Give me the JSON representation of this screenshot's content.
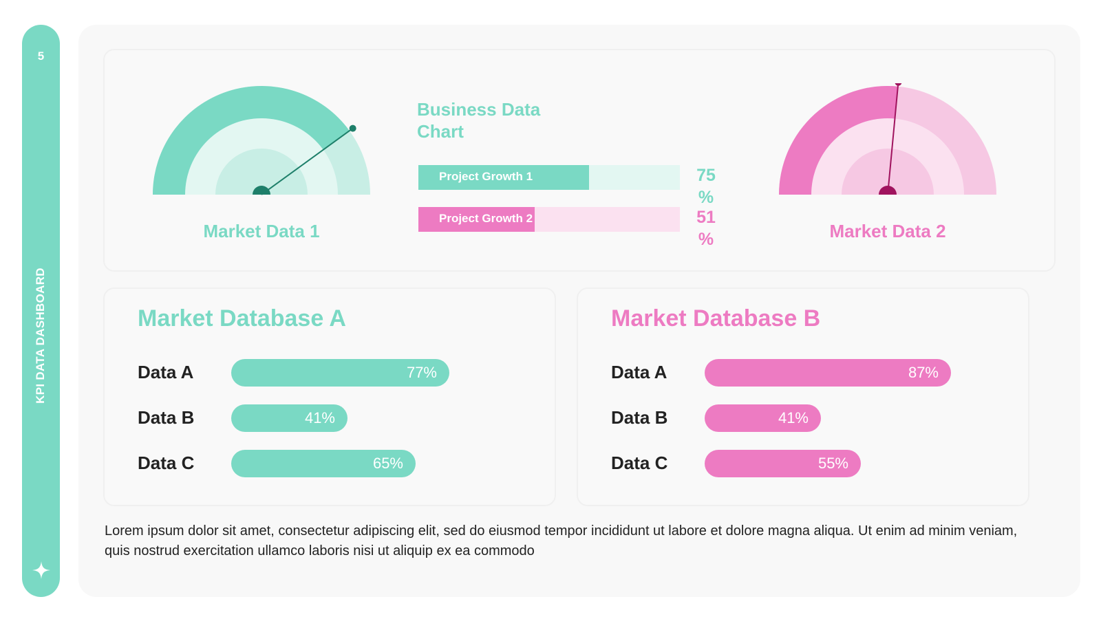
{
  "colors": {
    "teal": "#7ad9c4",
    "teal_light": "#c8eee5",
    "teal_lighter": "#e3f7f2",
    "teal_dark": "#1e7f6a",
    "pink": "#ed7bc2",
    "pink_light": "#f6c8e3",
    "pink_lighter": "#fbe1f0",
    "pink_dark": "#a0135e"
  },
  "sidebar": {
    "page_number": "5",
    "title": "KPI DATA DASHBOARD",
    "icon": "sparkle-icon"
  },
  "gauges": [
    {
      "label": "Market Data 1",
      "value_pct": 80,
      "color": "teal"
    },
    {
      "label": "Market Data 2",
      "value_pct": 53,
      "color": "pink"
    }
  ],
  "business_chart": {
    "title": "Business Data Chart",
    "bars": [
      {
        "label": "Project Growth 1",
        "value": 75,
        "display": "75 %",
        "color": "teal"
      },
      {
        "label": "Project Growth 2",
        "value": 51,
        "display": "51 %",
        "color": "pink"
      }
    ]
  },
  "databases": [
    {
      "title": "Market Database A",
      "color": "teal",
      "rows": [
        {
          "label": "Data A",
          "value": 77,
          "display": "77%"
        },
        {
          "label": "Data B",
          "value": 41,
          "display": "41%"
        },
        {
          "label": "Data C",
          "value": 65,
          "display": "65%"
        }
      ]
    },
    {
      "title": "Market Database B",
      "color": "pink",
      "rows": [
        {
          "label": "Data A",
          "value": 87,
          "display": "87%"
        },
        {
          "label": "Data B",
          "value": 41,
          "display": "41%"
        },
        {
          "label": "Data C",
          "value": 55,
          "display": "55%"
        }
      ]
    }
  ],
  "chart_data": [
    {
      "type": "bar",
      "title": "Business Data Chart",
      "categories": [
        "Project Growth 1",
        "Project Growth 2"
      ],
      "values": [
        75,
        51
      ],
      "ylim": [
        0,
        100
      ]
    },
    {
      "type": "bar",
      "title": "Market Database A",
      "categories": [
        "Data A",
        "Data B",
        "Data C"
      ],
      "values": [
        77,
        41,
        65
      ]
    },
    {
      "type": "bar",
      "title": "Market Database B",
      "categories": [
        "Data A",
        "Data B",
        "Data C"
      ],
      "values": [
        87,
        41,
        55
      ]
    }
  ],
  "footer": {
    "text": "Lorem ipsum dolor sit amet, consectetur adipiscing elit, sed do eiusmod tempor incididunt ut labore et dolore magna aliqua. Ut enim ad minim veniam, quis nostrud exercitation ullamco laboris nisi ut aliquip ex ea commodo"
  }
}
